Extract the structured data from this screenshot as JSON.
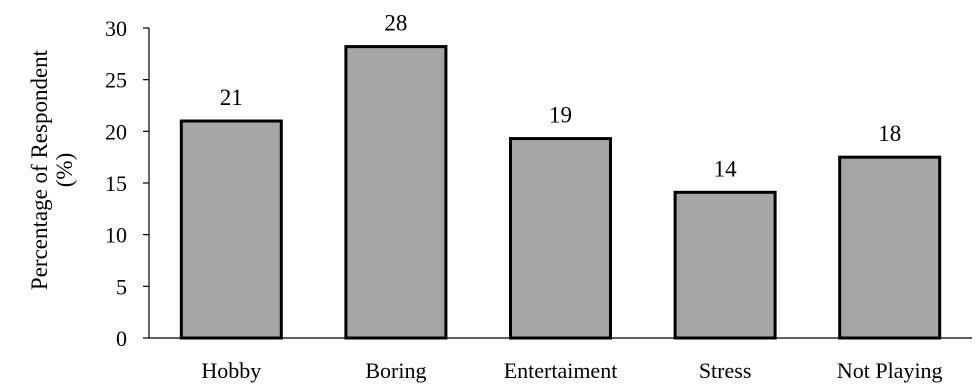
{
  "chart_data": {
    "type": "bar",
    "categories": [
      "Hobby",
      "Boring",
      "Entertaiment",
      "Stress",
      "Not Playing"
    ],
    "values": [
      21,
      28.2,
      19.3,
      14.1,
      17.5
    ],
    "data_labels": [
      "21",
      "28",
      "19",
      "14",
      "18"
    ],
    "title": "",
    "xlabel": "",
    "ylabel_lines": [
      "Percentage of Respondent",
      "(%)"
    ],
    "ylim": [
      0,
      30
    ],
    "yticks": [
      0,
      5,
      10,
      15,
      20,
      25,
      30
    ],
    "grid": false,
    "legend": "none",
    "bar_color": "#a6a6a6",
    "bar_edge_color": "#000000"
  }
}
